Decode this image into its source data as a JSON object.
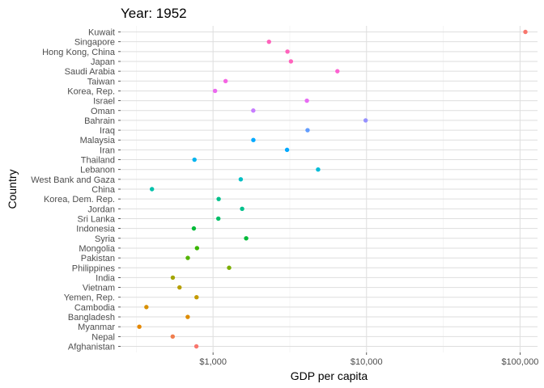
{
  "chart_data": {
    "type": "scatter",
    "title": "Year: 1952",
    "xlabel": "GDP per capita",
    "ylabel": "Country",
    "x_scale": "log10",
    "xlim": [
      250,
      130000
    ],
    "x_ticks": [
      1000,
      10000,
      100000
    ],
    "x_tick_labels": [
      "$1,000",
      "$10,000",
      "$100,000"
    ],
    "grid": true,
    "legend": "none",
    "points": [
      {
        "country": "Kuwait",
        "gdp": 108382,
        "color": "#F8766D"
      },
      {
        "country": "Singapore",
        "gdp": 2315,
        "color": "#FF62BC"
      },
      {
        "country": "Hong Kong, China",
        "gdp": 3054,
        "color": "#FF62BC"
      },
      {
        "country": "Japan",
        "gdp": 3217,
        "color": "#FF62BC"
      },
      {
        "country": "Saudi Arabia",
        "gdp": 6460,
        "color": "#FD61D1"
      },
      {
        "country": "Taiwan",
        "gdp": 1207,
        "color": "#F564E3"
      },
      {
        "country": "Korea, Rep.",
        "gdp": 1031,
        "color": "#EC69EF"
      },
      {
        "country": "Israel",
        "gdp": 4087,
        "color": "#E76BF3"
      },
      {
        "country": "Oman",
        "gdp": 1829,
        "color": "#C77CFF"
      },
      {
        "country": "Bahrain",
        "gdp": 9867,
        "color": "#9590FF"
      },
      {
        "country": "Iraq",
        "gdp": 4130,
        "color": "#619CFF"
      },
      {
        "country": "Malaysia",
        "gdp": 1831,
        "color": "#00A9FF"
      },
      {
        "country": "Iran",
        "gdp": 3035,
        "color": "#00A9FF"
      },
      {
        "country": "Thailand",
        "gdp": 757,
        "color": "#00B4EF"
      },
      {
        "country": "Lebanon",
        "gdp": 4835,
        "color": "#00BCD8"
      },
      {
        "country": "West Bank and Gaza",
        "gdp": 1516,
        "color": "#00BFC4"
      },
      {
        "country": "China",
        "gdp": 400,
        "color": "#00C1AA"
      },
      {
        "country": "Korea, Dem. Rep.",
        "gdp": 1088,
        "color": "#00C08B"
      },
      {
        "country": "Jordan",
        "gdp": 1547,
        "color": "#00C08B"
      },
      {
        "country": "Sri Lanka",
        "gdp": 1083,
        "color": "#00BE67"
      },
      {
        "country": "Indonesia",
        "gdp": 750,
        "color": "#00BA38"
      },
      {
        "country": "Syria",
        "gdp": 1644,
        "color": "#00BA38"
      },
      {
        "country": "Mongolia",
        "gdp": 786,
        "color": "#39B600"
      },
      {
        "country": "Pakistan",
        "gdp": 685,
        "color": "#53B400"
      },
      {
        "country": "Philippines",
        "gdp": 1273,
        "color": "#7CAE00"
      },
      {
        "country": "India",
        "gdp": 547,
        "color": "#A3A500"
      },
      {
        "country": "Vietnam",
        "gdp": 605,
        "color": "#B79F00"
      },
      {
        "country": "Yemen, Rep.",
        "gdp": 781,
        "color": "#C49A00"
      },
      {
        "country": "Cambodia",
        "gdp": 368,
        "color": "#D89000"
      },
      {
        "country": "Bangladesh",
        "gdp": 684,
        "color": "#DE8C00"
      },
      {
        "country": "Myanmar",
        "gdp": 331,
        "color": "#E58700"
      },
      {
        "country": "Nepal",
        "gdp": 546,
        "color": "#F07E4E"
      },
      {
        "country": "Afghanistan",
        "gdp": 779,
        "color": "#F8766D"
      }
    ]
  }
}
